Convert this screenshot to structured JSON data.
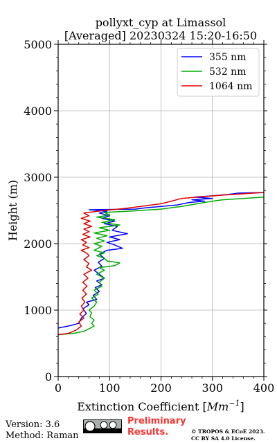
{
  "chart_data": {
    "type": "line",
    "title": [
      "pollyxt_cyp at Limassol",
      "[Averaged] 20230324 15:20-16:50"
    ],
    "xlabel": "Extinction Coefficient [Mm⁻¹]",
    "xlabel_base": "Extinction Coefficient [",
    "xlabel_unit": "Mm",
    "xlabel_exp": "−1",
    "xlabel_close": "]",
    "ylabel": "Height (m)",
    "xlim": [
      0,
      400
    ],
    "ylim": [
      0,
      5000
    ],
    "xticks": [
      0,
      100,
      200,
      300,
      400
    ],
    "yticks": [
      0,
      1000,
      2000,
      3000,
      4000,
      5000
    ],
    "grid": true,
    "legend_position": "top-right",
    "series": [
      {
        "name": "355 nm",
        "color": "#0000ff",
        "points": [
          [
            0,
            730
          ],
          [
            20,
            760
          ],
          [
            40,
            800
          ],
          [
            45,
            880
          ],
          [
            55,
            950
          ],
          [
            48,
            1020
          ],
          [
            60,
            1080
          ],
          [
            55,
            1120
          ],
          [
            75,
            1160
          ],
          [
            68,
            1220
          ],
          [
            80,
            1280
          ],
          [
            72,
            1340
          ],
          [
            85,
            1380
          ],
          [
            75,
            1440
          ],
          [
            90,
            1480
          ],
          [
            80,
            1540
          ],
          [
            70,
            1600
          ],
          [
            85,
            1660
          ],
          [
            78,
            1720
          ],
          [
            90,
            1780
          ],
          [
            80,
            1840
          ],
          [
            95,
            1900
          ],
          [
            125,
            1930
          ],
          [
            110,
            1980
          ],
          [
            95,
            2020
          ],
          [
            120,
            2060
          ],
          [
            100,
            2100
          ],
          [
            135,
            2150
          ],
          [
            105,
            2200
          ],
          [
            115,
            2260
          ],
          [
            90,
            2300
          ],
          [
            110,
            2340
          ],
          [
            85,
            2380
          ],
          [
            100,
            2420
          ],
          [
            80,
            2460
          ],
          [
            95,
            2490
          ],
          [
            60,
            2510
          ],
          [
            150,
            2520
          ],
          [
            170,
            2540
          ],
          [
            230,
            2580
          ],
          [
            255,
            2620
          ],
          [
            285,
            2640
          ],
          [
            260,
            2660
          ],
          [
            300,
            2680
          ],
          [
            265,
            2700
          ],
          [
            300,
            2720
          ],
          [
            330,
            2740
          ],
          [
            350,
            2760
          ],
          [
            400,
            2770
          ]
        ]
      },
      {
        "name": "532 nm",
        "color": "#00aa00",
        "points": [
          [
            0,
            630
          ],
          [
            30,
            650
          ],
          [
            50,
            680
          ],
          [
            60,
            720
          ],
          [
            70,
            760
          ],
          [
            65,
            800
          ],
          [
            70,
            850
          ],
          [
            62,
            900
          ],
          [
            65,
            960
          ],
          [
            60,
            1000
          ],
          [
            70,
            1060
          ],
          [
            75,
            1120
          ],
          [
            65,
            1180
          ],
          [
            78,
            1240
          ],
          [
            70,
            1300
          ],
          [
            85,
            1360
          ],
          [
            80,
            1420
          ],
          [
            90,
            1480
          ],
          [
            75,
            1540
          ],
          [
            90,
            1600
          ],
          [
            80,
            1640
          ],
          [
            110,
            1670
          ],
          [
            120,
            1710
          ],
          [
            95,
            1740
          ],
          [
            90,
            1780
          ],
          [
            75,
            1820
          ],
          [
            90,
            1860
          ],
          [
            70,
            1900
          ],
          [
            85,
            1960
          ],
          [
            70,
            2000
          ],
          [
            90,
            2040
          ],
          [
            75,
            2080
          ],
          [
            95,
            2120
          ],
          [
            70,
            2160
          ],
          [
            100,
            2200
          ],
          [
            80,
            2240
          ],
          [
            120,
            2280
          ],
          [
            85,
            2320
          ],
          [
            110,
            2360
          ],
          [
            75,
            2400
          ],
          [
            100,
            2430
          ],
          [
            90,
            2470
          ],
          [
            140,
            2490
          ],
          [
            200,
            2520
          ],
          [
            240,
            2560
          ],
          [
            270,
            2600
          ],
          [
            300,
            2640
          ],
          [
            320,
            2660
          ],
          [
            360,
            2680
          ],
          [
            400,
            2700
          ]
        ]
      },
      {
        "name": "1064 nm",
        "color": "#dd0000",
        "points": [
          [
            0,
            630
          ],
          [
            20,
            650
          ],
          [
            35,
            700
          ],
          [
            45,
            760
          ],
          [
            40,
            820
          ],
          [
            50,
            880
          ],
          [
            42,
            940
          ],
          [
            50,
            1000
          ],
          [
            45,
            1060
          ],
          [
            52,
            1120
          ],
          [
            46,
            1180
          ],
          [
            55,
            1240
          ],
          [
            48,
            1300
          ],
          [
            56,
            1360
          ],
          [
            48,
            1420
          ],
          [
            58,
            1480
          ],
          [
            50,
            1540
          ],
          [
            65,
            1600
          ],
          [
            55,
            1650
          ],
          [
            60,
            1700
          ],
          [
            50,
            1760
          ],
          [
            60,
            1820
          ],
          [
            55,
            1860
          ],
          [
            45,
            1900
          ],
          [
            60,
            1940
          ],
          [
            48,
            1980
          ],
          [
            55,
            2020
          ],
          [
            45,
            2060
          ],
          [
            62,
            2100
          ],
          [
            48,
            2140
          ],
          [
            60,
            2180
          ],
          [
            50,
            2220
          ],
          [
            65,
            2260
          ],
          [
            50,
            2300
          ],
          [
            62,
            2340
          ],
          [
            45,
            2380
          ],
          [
            60,
            2420
          ],
          [
            50,
            2460
          ],
          [
            90,
            2500
          ],
          [
            130,
            2530
          ],
          [
            160,
            2560
          ],
          [
            200,
            2600
          ],
          [
            220,
            2640
          ],
          [
            240,
            2680
          ],
          [
            270,
            2700
          ],
          [
            320,
            2730
          ],
          [
            380,
            2760
          ],
          [
            400,
            2770
          ]
        ]
      }
    ]
  },
  "footer": {
    "version": "Version: 3.6",
    "method": "Method: Raman",
    "preliminary": [
      "Preliminary",
      "Results."
    ],
    "copyright": [
      "© TROPOS & ECoE 2023.",
      "CC BY SA 4.0 License."
    ]
  }
}
